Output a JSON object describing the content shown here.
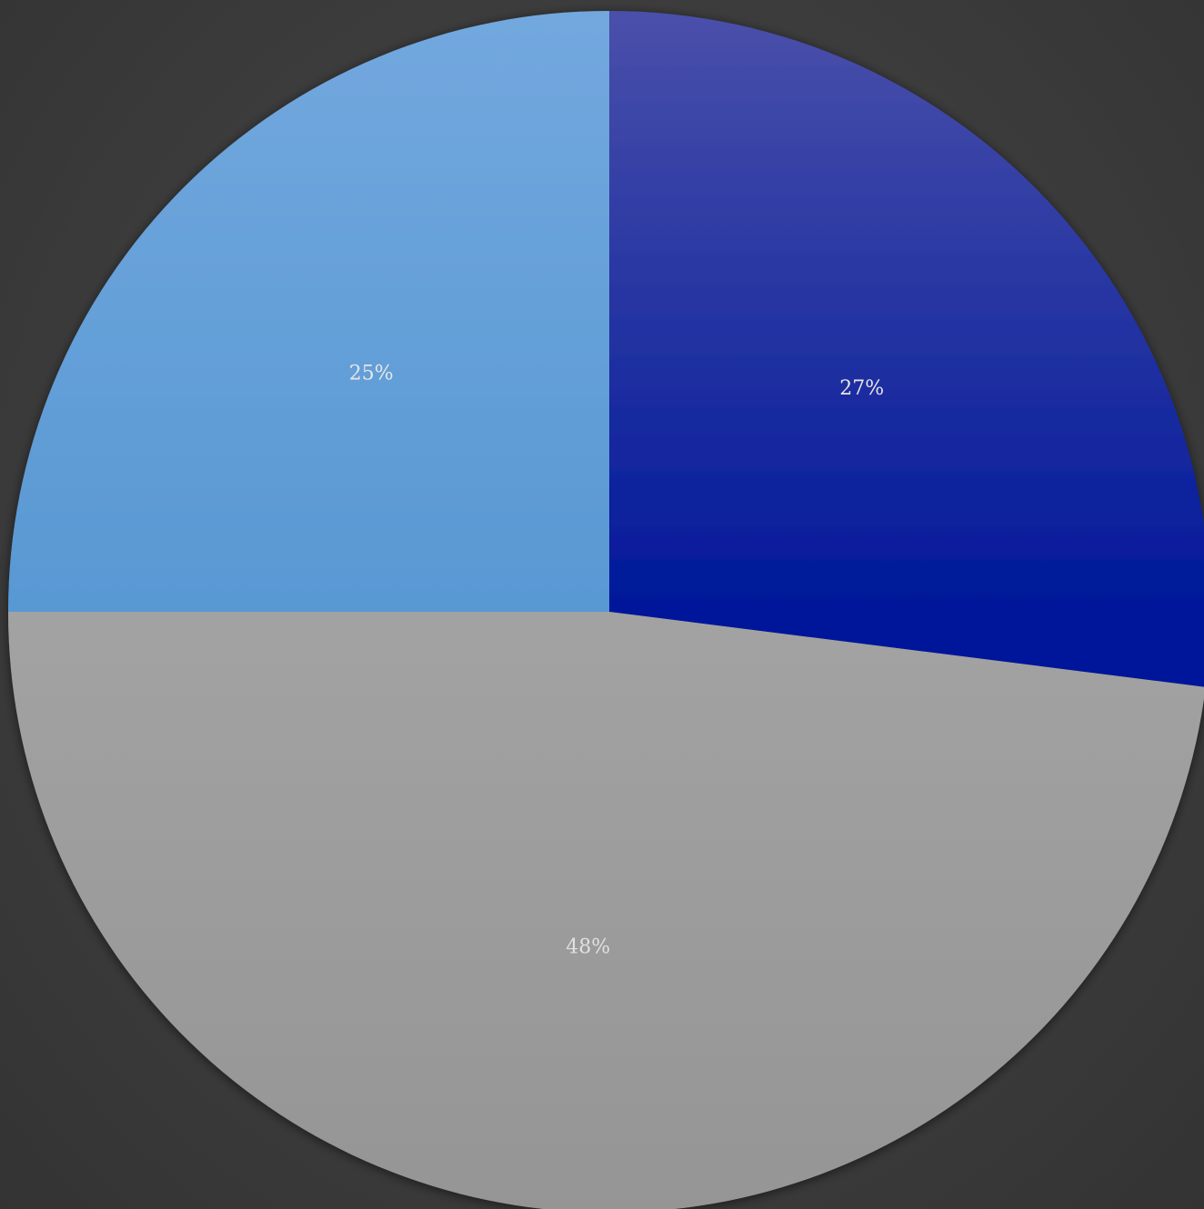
{
  "chart_data": {
    "type": "pie",
    "start_angle_deg": 0,
    "direction": "clockwise",
    "slices": [
      {
        "label": "27%",
        "value": 27,
        "color_top": "#4a50aa",
        "color_bottom": "#00189a",
        "label_color": "#e6e6e6"
      },
      {
        "label": "48%",
        "value": 48,
        "color_top": "#b0b0b0",
        "color_bottom": "#959595",
        "label_color": "#e0e0e0"
      },
      {
        "label": "25%",
        "value": 25,
        "color_top": "#72a8de",
        "color_bottom": "#3f88c8",
        "label_color": "#e6e6e6"
      }
    ],
    "background_color": "#3d3d3d"
  }
}
